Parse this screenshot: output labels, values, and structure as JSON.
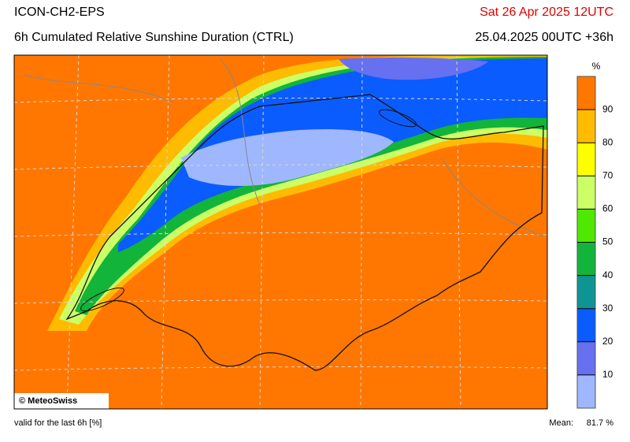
{
  "header": {
    "title": "ICON-CH2-EPS",
    "subtitle": "6h Cumulated Relative Sunshine Duration (CTRL)",
    "valid_time": "Sat 26 Apr 2025 12UTC",
    "run": "25.04.2025 00UTC +36h"
  },
  "legend": {
    "unit": "%",
    "ticks": [
      10,
      20,
      30,
      40,
      50,
      60,
      70,
      80,
      90
    ],
    "colors": [
      "#9fb7ff",
      "#6670f0",
      "#0a5cff",
      "#0f9494",
      "#12b43a",
      "#4fe800",
      "#ccff66",
      "#ffff00",
      "#ffbb00",
      "#ff7700"
    ]
  },
  "map": {
    "copyright": "© MeteoSwiss"
  },
  "footer": {
    "note": "valid for the last 6h [%]",
    "mean_label": "Mean:",
    "mean_value": "81.7 %"
  }
}
